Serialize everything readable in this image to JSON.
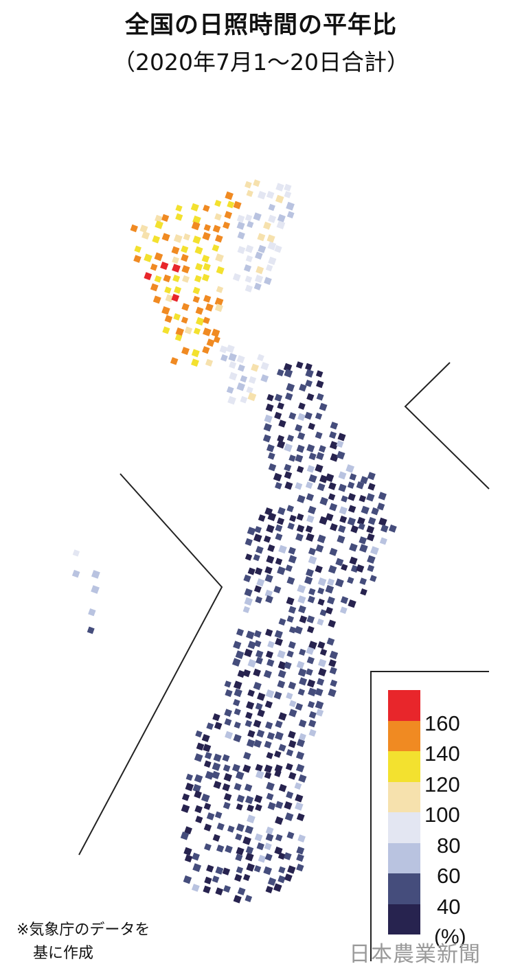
{
  "title": "全国の日照時間の平年比",
  "subtitle": "（2020年7月1～20日合計）",
  "note": [
    "※気象庁のデータを",
    "基に作成"
  ],
  "watermark": "日本農業新聞",
  "legend": {
    "unit": "(%)",
    "colors": [
      "#e8262b",
      "#f08a22",
      "#f3e12f",
      "#f6e1ad",
      "#e3e6f2",
      "#b9c3e0",
      "#454d7c",
      "#27234f"
    ],
    "labels": [
      "160",
      "140",
      "120",
      "100",
      "80",
      "60",
      "40"
    ]
  },
  "map": {
    "regions": [
      {
        "name": "hokkaido",
        "dominant": [
          "#f08a22",
          "#f3e12f",
          "#f6e1ad"
        ]
      },
      {
        "name": "hokkaido-east",
        "dominant": [
          "#e3e6f2",
          "#b9c3e0",
          "#f6e1ad"
        ]
      },
      {
        "name": "tohoku-north",
        "dominant": [
          "#e3e6f2",
          "#b9c3e0",
          "#f6e1ad"
        ]
      },
      {
        "name": "honshu-kyushu",
        "dominant": [
          "#454d7c",
          "#27234f",
          "#b9c3e0"
        ]
      },
      {
        "name": "islands",
        "dominant": [
          "#b9c3e0",
          "#e3e6f2",
          "#454d7c"
        ]
      }
    ]
  }
}
